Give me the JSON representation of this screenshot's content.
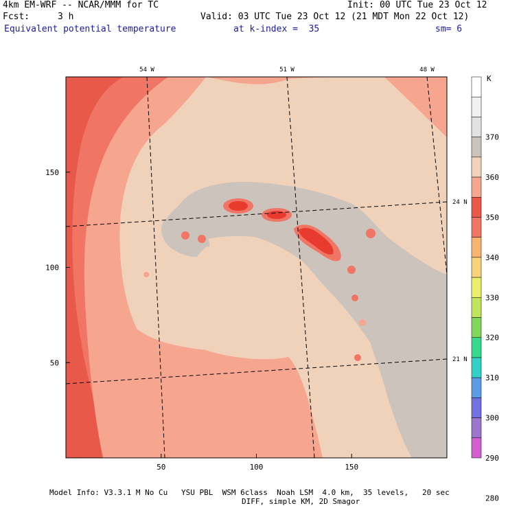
{
  "header": {
    "model": "4km EM-WRF -- NCAR/MMM for TC",
    "init": "Init: 00 UTC Tue 23 Oct 12",
    "fcst_label": "Fcst:",
    "fcst_value": "3 h",
    "valid": "Valid: 03 UTC Tue 23 Oct 12 (21 MDT Mon 22 Oct 12)",
    "field": "Equivalent potential temperature",
    "level": "at k-index =  35",
    "smooth": "sm= 6"
  },
  "footer": {
    "line1": "Model Info: V3.3.1 M No Cu   YSU PBL  WSM 6class  Noah LSM  4.0 km,  35 levels,   20 sec",
    "line2": "DIFF, simple KM, 2D Smagor"
  },
  "colors": {
    "bg_red": "#e8594a",
    "mid_red": "#f07565",
    "salmon": "#f6a58f",
    "tan": "#f0d2bb",
    "gray": "#cbc3bc",
    "hot": "#e83a2e"
  },
  "chart_data": {
    "type": "heatmap",
    "title": "Equivalent potential temperature",
    "x_ticks": [
      50,
      100,
      150
    ],
    "y_ticks": [
      50,
      100,
      150
    ],
    "xlim": [
      0,
      200
    ],
    "ylim": [
      0,
      200
    ],
    "lon_labels": [
      "54 W",
      "51 W",
      "48 W"
    ],
    "lat_labels": [
      "24 N",
      "21 N"
    ],
    "colorbar": {
      "unit": "K",
      "levels": [
        280,
        290,
        300,
        310,
        320,
        330,
        340,
        350,
        360,
        370
      ],
      "colors": [
        "#ffffff",
        "#f0f0f0",
        "#e2e2e2",
        "#cbc3bc",
        "#f0d2bb",
        "#f6a58f",
        "#e8594a",
        "#f07565",
        "#f9b56f",
        "#f7d47a",
        "#eaee6d",
        "#c0e45e",
        "#7fd85c",
        "#38d98f",
        "#33d0c7",
        "#5a9be3",
        "#7171e0",
        "#9b76cf",
        "#d35fd2"
      ]
    }
  }
}
